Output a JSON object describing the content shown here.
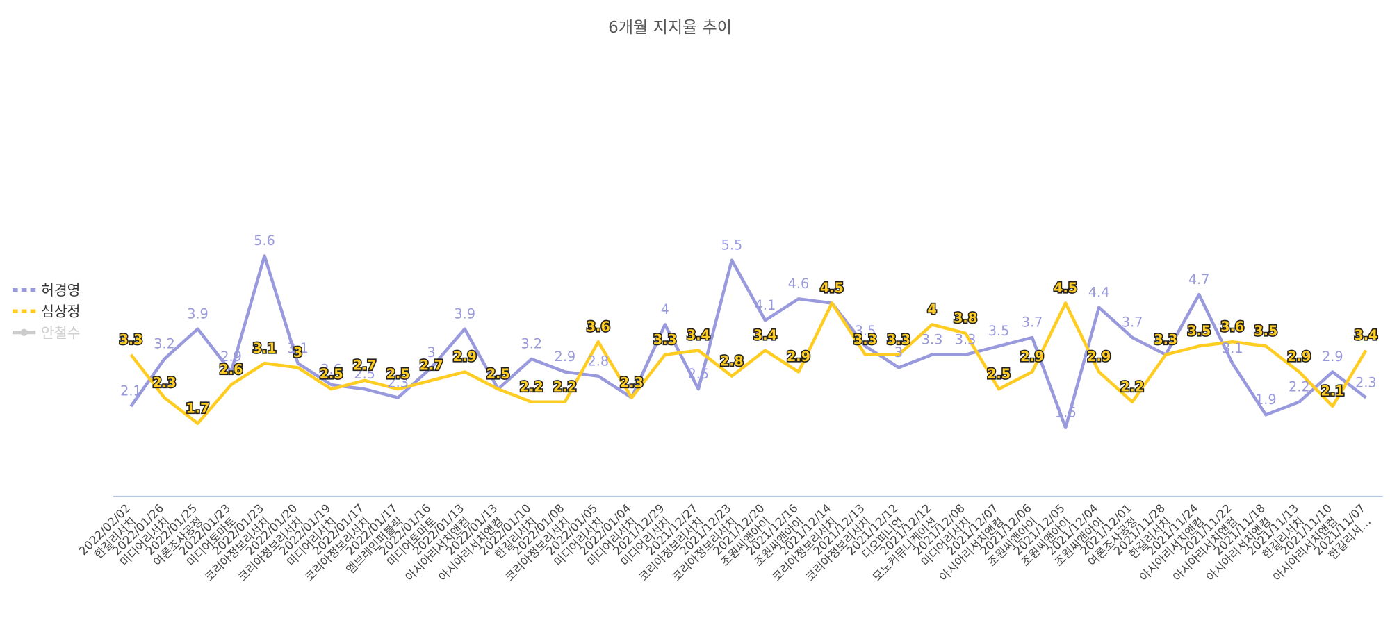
{
  "chart_data": {
    "type": "line",
    "title": "6개월 지지율 추이",
    "categories": [
      [
        "2022/02/02",
        "한길리서치"
      ],
      [
        "2022/01/26",
        "미디어리서치"
      ],
      [
        "2022/01/25",
        "여론조사공정"
      ],
      [
        "2022/01/23",
        "미디어토마토"
      ],
      [
        "2022/01/23",
        "코리아정보리서치"
      ],
      [
        "2022/01/20",
        "코리아정보리서치"
      ],
      [
        "2022/01/19",
        "미디어리서치"
      ],
      [
        "2022/01/17",
        "코리아정보리서치"
      ],
      [
        "2022/01/17",
        "엠브레인퍼블릭"
      ],
      [
        "2022/01/16",
        "미디어토마토"
      ],
      [
        "2022/01/13",
        "아시아리서치앤컴"
      ],
      [
        "2022/01/13",
        "아시아리서치앤컴"
      ],
      [
        "2022/01/10",
        "한길리서치"
      ],
      [
        "2022/01/08",
        "코리아정보리서치"
      ],
      [
        "2022/01/05",
        "미디어리서치"
      ],
      [
        "2022/01/04",
        "미디어리서치"
      ],
      [
        "2021/12/29",
        "미디어리서치"
      ],
      [
        "2021/12/27",
        "코리아정보리서치"
      ],
      [
        "2021/12/23",
        "코리아정보리서치"
      ],
      [
        "2021/12/20",
        "조원씨앤아이"
      ],
      [
        "2021/12/16",
        "조원씨앤아이"
      ],
      [
        "2021/12/14",
        "코리아정보리서치"
      ],
      [
        "2021/12/13",
        "코리아정보리서치"
      ],
      [
        "2021/12/12",
        "디오피니언"
      ],
      [
        "2021/12/12",
        "모노커뮤니케이션"
      ],
      [
        "2021/12/08",
        "미디어리서치"
      ],
      [
        "2021/12/07",
        "아시아리서치앤컴"
      ],
      [
        "2021/12/06",
        "조원씨앤아이"
      ],
      [
        "2021/12/05",
        "조원씨앤아이"
      ],
      [
        "2021/12/04",
        "조원씨앤아이"
      ],
      [
        "2021/12/01",
        "여론조사공정"
      ],
      [
        "2021/11/28",
        "한길리서치"
      ],
      [
        "2021/11/24",
        "아시아리서치앤컴"
      ],
      [
        "2021/11/22",
        "아시아리서치앤컴"
      ],
      [
        "2021/11/18",
        "아시아리서치앤컴"
      ],
      [
        "2021/11/13",
        "한길리서치"
      ],
      [
        "2021/11/10",
        "아시아리서치앤컴"
      ],
      [
        "2021/11/07",
        "한길리서…"
      ]
    ],
    "series": [
      {
        "name": "허경영",
        "color": "#9999dd",
        "values": [
          2.1,
          3.2,
          3.9,
          2.9,
          5.6,
          3.1,
          2.6,
          2.5,
          2.3,
          3.0,
          3.9,
          2.5,
          3.2,
          2.9,
          2.8,
          2.3,
          4.0,
          2.5,
          5.5,
          4.1,
          4.6,
          4.5,
          3.5,
          3.0,
          3.3,
          3.3,
          3.5,
          3.7,
          1.6,
          4.4,
          3.7,
          3.3,
          4.7,
          3.1,
          1.9,
          2.2,
          2.9,
          2.3
        ]
      },
      {
        "name": "심상정",
        "color": "#ffcc22",
        "values": [
          3.3,
          2.3,
          1.7,
          2.6,
          3.1,
          3.0,
          2.5,
          2.7,
          2.5,
          2.7,
          2.9,
          2.5,
          2.2,
          2.2,
          3.6,
          2.3,
          3.3,
          3.4,
          2.8,
          3.4,
          2.9,
          4.5,
          3.3,
          3.3,
          4.0,
          3.8,
          2.5,
          2.9,
          4.5,
          2.9,
          2.2,
          3.3,
          3.5,
          3.6,
          3.5,
          2.9,
          2.1,
          3.4
        ]
      },
      {
        "name": "안철수",
        "color": "#cccccc",
        "hidden": true
      }
    ],
    "ylim": [
      0,
      6.5
    ],
    "legend": "left"
  }
}
